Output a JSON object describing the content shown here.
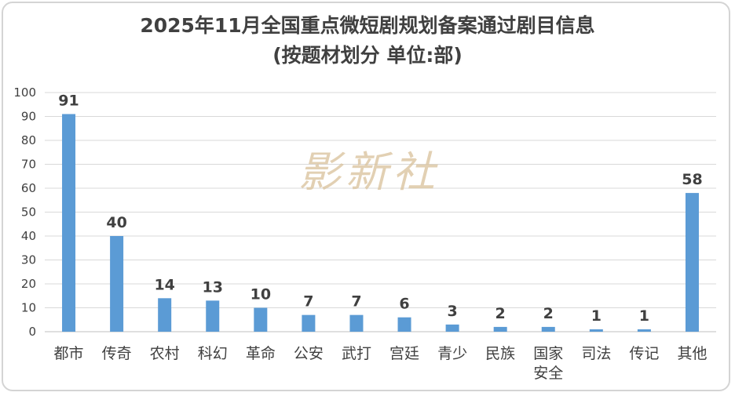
{
  "chart_data": {
    "type": "bar",
    "title": "2025年11月全国重点微短剧规划备案通过剧目信息",
    "subtitle": "(按题材划分 单位:部)",
    "categories": [
      "都市",
      "传奇",
      "农村",
      "科幻",
      "革命",
      "公安",
      "武打",
      "宫廷",
      "青少",
      "民族",
      "国家安全",
      "司法",
      "传记",
      "其他"
    ],
    "values": [
      91,
      40,
      14,
      13,
      10,
      7,
      7,
      6,
      3,
      2,
      2,
      1,
      1,
      58
    ],
    "ylim": [
      0,
      100
    ],
    "yticks": [
      "0",
      "10",
      "20",
      "30",
      "40",
      "50",
      "60",
      "70",
      "80",
      "90",
      "100"
    ],
    "grid": true,
    "bar_color": "#5b9bd5",
    "watermark": "影新社"
  }
}
